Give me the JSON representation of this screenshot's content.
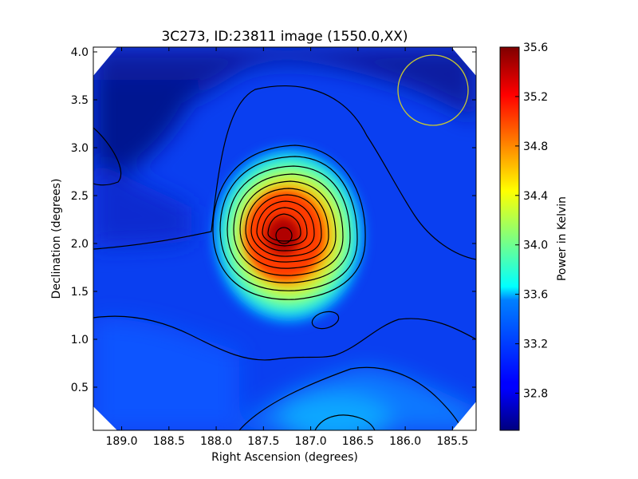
{
  "chart_data": {
    "type": "heatmap",
    "title": "3C273, ID:23811 image (1550.0,XX)",
    "xlabel": "Right Ascension (degrees)",
    "ylabel": "Declination (degrees)",
    "xlim": [
      189.3,
      185.25
    ],
    "ylim": [
      0.05,
      4.05
    ],
    "xticks": [
      189.0,
      188.5,
      188.0,
      187.5,
      187.0,
      186.5,
      186.0,
      185.5
    ],
    "xtick_labels": [
      "189.0",
      "188.5",
      "188.0",
      "187.5",
      "187.0",
      "186.5",
      "186.0",
      "185.5"
    ],
    "yticks": [
      0.5,
      1.0,
      1.5,
      2.0,
      2.5,
      3.0,
      3.5,
      4.0
    ],
    "ytick_labels": [
      "0.5",
      "1.0",
      "1.5",
      "2.0",
      "2.5",
      "3.0",
      "3.5",
      "4.0"
    ],
    "colorbar": {
      "label": "Power in Kelvin",
      "range": [
        32.5,
        35.6
      ],
      "ticks": [
        32.8,
        33.2,
        33.6,
        34.0,
        34.4,
        34.8,
        35.2,
        35.6
      ],
      "tick_labels": [
        "32.8",
        "33.2",
        "33.6",
        "34.0",
        "34.4",
        "34.8",
        "35.2",
        "35.6"
      ],
      "colormap": "jet"
    },
    "peak": {
      "ra": 187.25,
      "dec": 2.1,
      "value": 35.6
    },
    "beam_circle": {
      "ra": 185.75,
      "dec": 3.6,
      "color": "#c8c832"
    },
    "grid": false
  }
}
